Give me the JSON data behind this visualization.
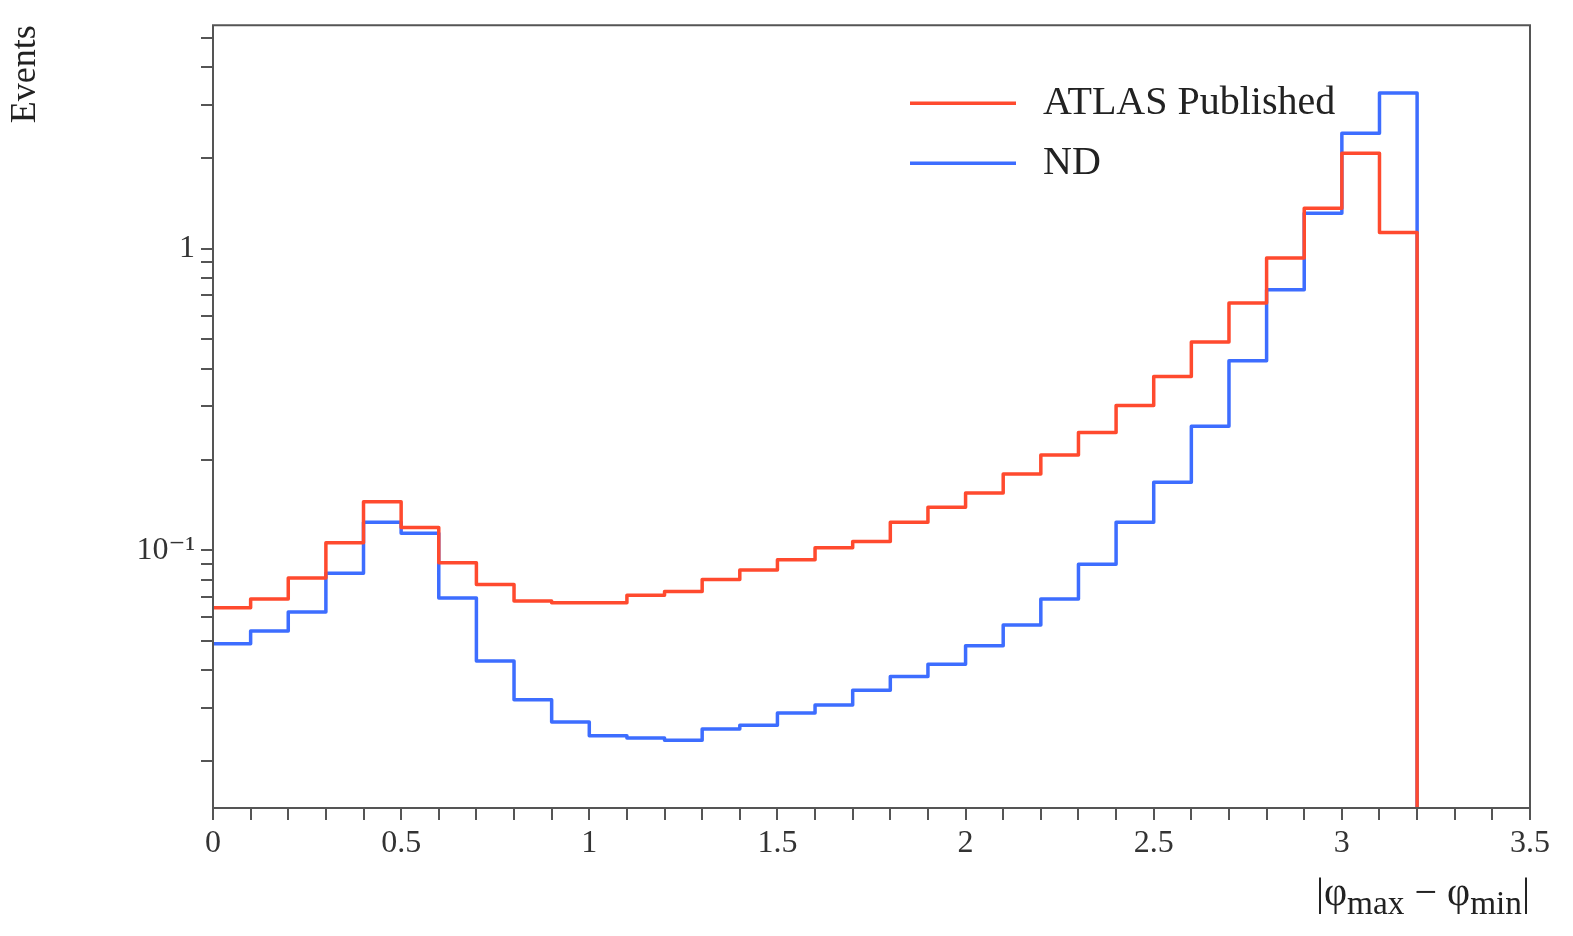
{
  "chart_data": {
    "type": "histogram",
    "xlabel": "|φ$_{max}$ − φ$_{min}$|",
    "ylabel": "Events",
    "log": "y",
    "legend": "top right",
    "grid": false,
    "bins": [
      0,
      0.1,
      0.2,
      0.3,
      0.4,
      0.5,
      0.6,
      0.7,
      0.8,
      0.9,
      1,
      1.1,
      1.2,
      1.3,
      1.4,
      1.5,
      1.6,
      1.7,
      1.8,
      1.9,
      2,
      2.1,
      2.2,
      2.3,
      2.4,
      2.5,
      2.6,
      2.7,
      2.8,
      2.9,
      3,
      3.1,
      3.2
    ],
    "series": [
      {
        "name": "ATLAS Published",
        "color": "#ff4a2e",
        "values": [
          0.0645,
          0.069,
          0.081,
          0.106,
          0.145,
          0.119,
          0.091,
          0.077,
          0.068,
          0.067,
          0.067,
          0.071,
          0.073,
          0.08,
          0.086,
          0.093,
          0.102,
          0.107,
          0.124,
          0.139,
          0.155,
          0.179,
          0.207,
          0.246,
          0.302,
          0.377,
          0.49,
          0.66,
          0.93,
          1.36,
          2.07,
          1.13
        ]
      },
      {
        "name": "ND",
        "color": "#3d6dff",
        "values": [
          0.049,
          0.054,
          0.0625,
          0.084,
          0.124,
          0.114,
          0.0695,
          0.043,
          0.032,
          0.027,
          0.0243,
          0.0239,
          0.0235,
          0.0256,
          0.0263,
          0.0289,
          0.0307,
          0.0344,
          0.0382,
          0.0419,
          0.0483,
          0.0566,
          0.069,
          0.09,
          0.124,
          0.168,
          0.258,
          0.425,
          0.73,
          1.31,
          2.41,
          3.28
        ]
      }
    ],
    "xlim": [
      0,
      3.5
    ],
    "xticks": [
      0,
      {
        "value": 0.1,
        "label": null
      },
      {
        "value": 0.2,
        "label": null
      },
      {
        "value": 0.3,
        "label": null
      },
      {
        "value": 0.4,
        "label": null
      },
      0.5,
      {
        "value": 0.6,
        "label": null
      },
      {
        "value": 0.7,
        "label": null
      },
      {
        "value": 0.8,
        "label": null
      },
      {
        "value": 0.9,
        "label": null
      },
      1,
      {
        "value": 1.1,
        "label": null
      },
      {
        "value": 1.2,
        "label": null
      },
      {
        "value": 1.3,
        "label": null
      },
      {
        "value": 1.4,
        "label": null
      },
      1.5,
      {
        "value": 1.6,
        "label": null
      },
      {
        "value": 1.7,
        "label": null
      },
      {
        "value": 1.8,
        "label": null
      },
      {
        "value": 1.9,
        "label": null
      },
      2,
      {
        "value": 2.1,
        "label": null
      },
      {
        "value": 2.2,
        "label": null
      },
      {
        "value": 2.3,
        "label": null
      },
      {
        "value": 2.4,
        "label": null
      },
      2.5,
      {
        "value": 2.6,
        "label": null
      },
      {
        "value": 2.7,
        "label": null
      },
      {
        "value": 2.8,
        "label": null
      },
      {
        "value": 2.9,
        "label": null
      },
      3,
      {
        "value": 3.1,
        "label": null
      },
      {
        "value": 3.2,
        "label": null
      },
      {
        "value": 3.3,
        "label": null
      },
      {
        "value": 3.4,
        "label": null
      },
      3.5
    ],
    "ylim": [
      0.014,
      5.5
    ],
    "yticks": [
      {
        "value": 0.02,
        "label": null
      },
      {
        "value": 0.03,
        "label": null
      },
      {
        "value": 0.04,
        "label": null
      },
      {
        "value": 0.05,
        "label": null
      },
      {
        "value": 0.06,
        "label": null
      },
      {
        "value": 0.07,
        "label": null
      },
      {
        "value": 0.08,
        "label": null
      },
      {
        "value": 0.09,
        "label": null
      },
      {
        "value": 0.1,
        "label": "10⁻¹"
      },
      {
        "value": 0.2,
        "label": null
      },
      {
        "value": 0.3,
        "label": null
      },
      {
        "value": 0.4,
        "label": null
      },
      {
        "value": 0.5,
        "label": null
      },
      {
        "value": 0.6,
        "label": null
      },
      {
        "value": 0.7,
        "label": null
      },
      {
        "value": 0.8,
        "label": null
      },
      {
        "value": 0.9,
        "label": null
      },
      1,
      {
        "value": 2,
        "label": null
      },
      {
        "value": 3,
        "label": null
      },
      {
        "value": 4,
        "label": null
      },
      {
        "value": 5,
        "label": null
      }
    ]
  }
}
